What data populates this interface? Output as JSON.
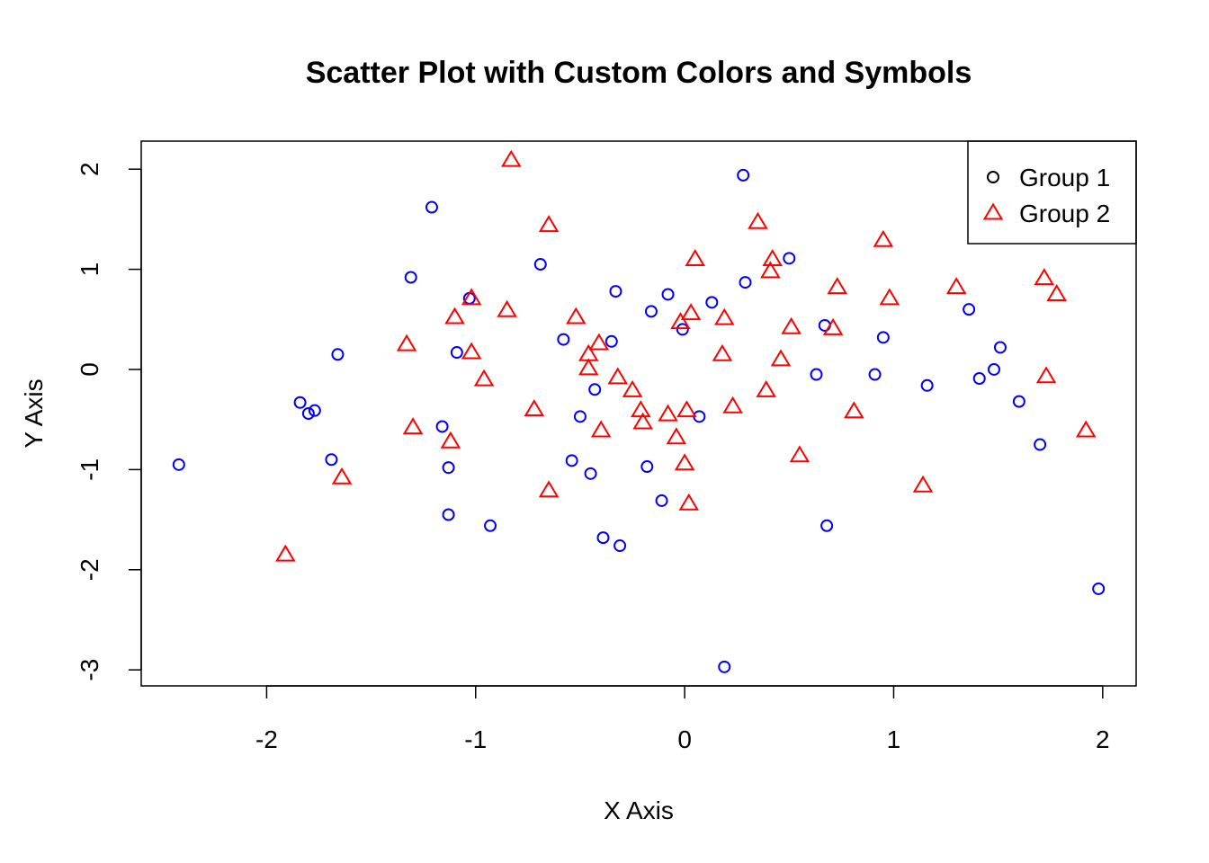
{
  "chart_data": {
    "type": "scatter",
    "title": "Scatter Plot with Custom Colors and Symbols",
    "xlabel": "X Axis",
    "ylabel": "Y Axis",
    "xlim": [
      -2.6,
      2.16
    ],
    "ylim": [
      -3.16,
      2.28
    ],
    "xticks": [
      -2,
      -1,
      0,
      1,
      2
    ],
    "xtick_labels": [
      "-2",
      "-1",
      "0",
      "1",
      "2"
    ],
    "yticks": [
      -3,
      -2,
      -1,
      0,
      1,
      2
    ],
    "ytick_labels": [
      "-3",
      "-2",
      "-1",
      "0",
      "1",
      "2"
    ],
    "grid": false,
    "legend_position": "top-right",
    "series": [
      {
        "name": "Group 1",
        "marker": "circle",
        "color": "#0000FF",
        "legend_color": "#000000",
        "points": [
          [
            -2.42,
            -0.95
          ],
          [
            -1.84,
            -0.33
          ],
          [
            -1.8,
            -0.44
          ],
          [
            -1.77,
            -0.41
          ],
          [
            -1.69,
            -0.9
          ],
          [
            -1.66,
            0.15
          ],
          [
            -1.31,
            0.92
          ],
          [
            -1.21,
            1.62
          ],
          [
            -1.16,
            -0.57
          ],
          [
            -1.13,
            -0.98
          ],
          [
            -1.13,
            -1.45
          ],
          [
            -1.09,
            0.17
          ],
          [
            -1.03,
            0.71
          ],
          [
            -0.93,
            -1.56
          ],
          [
            -0.69,
            1.05
          ],
          [
            -0.58,
            0.3
          ],
          [
            -0.54,
            -0.91
          ],
          [
            -0.5,
            -0.47
          ],
          [
            -0.45,
            -1.04
          ],
          [
            -0.43,
            -0.2
          ],
          [
            -0.39,
            -1.68
          ],
          [
            -0.35,
            0.28
          ],
          [
            -0.33,
            0.78
          ],
          [
            -0.31,
            -1.76
          ],
          [
            -0.18,
            -0.97
          ],
          [
            -0.16,
            0.58
          ],
          [
            -0.11,
            -1.31
          ],
          [
            -0.08,
            0.75
          ],
          [
            -0.01,
            0.4
          ],
          [
            0.07,
            -0.47
          ],
          [
            0.13,
            0.67
          ],
          [
            0.19,
            -2.97
          ],
          [
            0.28,
            1.94
          ],
          [
            0.29,
            0.87
          ],
          [
            0.5,
            1.11
          ],
          [
            0.63,
            -0.05
          ],
          [
            0.67,
            0.44
          ],
          [
            0.68,
            -1.56
          ],
          [
            0.91,
            -0.05
          ],
          [
            0.95,
            0.32
          ],
          [
            1.16,
            -0.16
          ],
          [
            1.36,
            0.6
          ],
          [
            1.41,
            -0.09
          ],
          [
            1.48,
            0.0
          ],
          [
            1.51,
            0.22
          ],
          [
            1.6,
            -0.32
          ],
          [
            1.7,
            -0.75
          ],
          [
            1.98,
            -2.19
          ]
        ]
      },
      {
        "name": "Group 2",
        "marker": "triangle",
        "color": "#FF0000",
        "legend_color": "#FF0000",
        "points": [
          [
            -1.91,
            -1.85
          ],
          [
            -1.64,
            -1.08
          ],
          [
            -1.33,
            0.25
          ],
          [
            -1.3,
            -0.58
          ],
          [
            -1.12,
            -0.72
          ],
          [
            -1.1,
            0.52
          ],
          [
            -1.02,
            0.71
          ],
          [
            -1.02,
            0.17
          ],
          [
            -0.96,
            -0.1
          ],
          [
            -0.85,
            0.59
          ],
          [
            -0.83,
            2.09
          ],
          [
            -0.72,
            -0.4
          ],
          [
            -0.65,
            1.44
          ],
          [
            -0.65,
            -1.21
          ],
          [
            -0.52,
            0.52
          ],
          [
            -0.46,
            0.15
          ],
          [
            -0.46,
            0.01
          ],
          [
            -0.41,
            0.26
          ],
          [
            -0.4,
            -0.61
          ],
          [
            -0.32,
            -0.08
          ],
          [
            -0.25,
            -0.21
          ],
          [
            -0.21,
            -0.41
          ],
          [
            -0.2,
            -0.53
          ],
          [
            -0.08,
            -0.45
          ],
          [
            -0.04,
            -0.68
          ],
          [
            -0.02,
            0.47
          ],
          [
            0.0,
            -0.94
          ],
          [
            0.01,
            -0.41
          ],
          [
            0.02,
            -1.34
          ],
          [
            0.03,
            0.56
          ],
          [
            0.05,
            1.1
          ],
          [
            0.18,
            0.15
          ],
          [
            0.19,
            0.51
          ],
          [
            0.23,
            -0.37
          ],
          [
            0.35,
            1.47
          ],
          [
            0.39,
            -0.21
          ],
          [
            0.41,
            0.98
          ],
          [
            0.42,
            1.1
          ],
          [
            0.46,
            0.1
          ],
          [
            0.51,
            0.42
          ],
          [
            0.55,
            -0.86
          ],
          [
            0.71,
            0.41
          ],
          [
            0.73,
            0.82
          ],
          [
            0.81,
            -0.42
          ],
          [
            0.95,
            1.29
          ],
          [
            0.98,
            0.71
          ],
          [
            1.14,
            -1.16
          ],
          [
            1.3,
            0.82
          ],
          [
            1.72,
            0.91
          ],
          [
            1.73,
            -0.07
          ],
          [
            1.78,
            0.75
          ],
          [
            1.92,
            -0.61
          ]
        ]
      }
    ]
  }
}
